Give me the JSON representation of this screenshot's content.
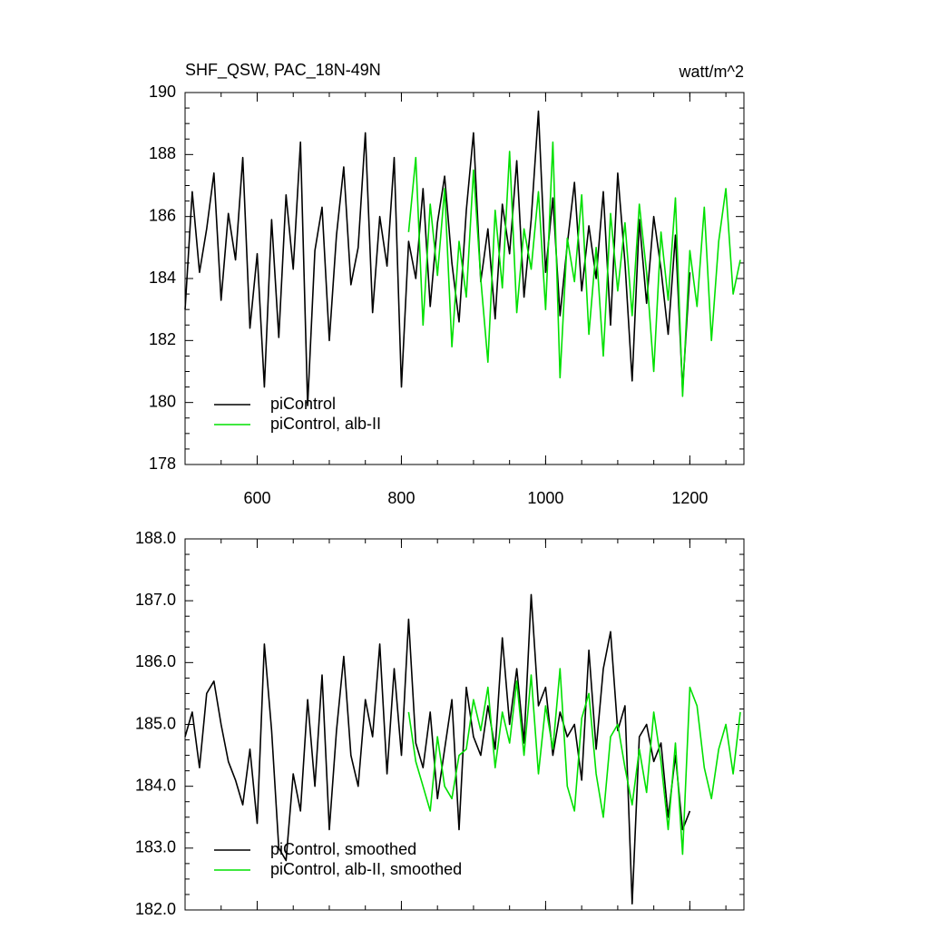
{
  "chart_data": [
    {
      "type": "line",
      "title": "SHF_QSW, PAC_18N-49N",
      "subtitle": "watt/m^2",
      "xlim": [
        500,
        1275
      ],
      "xticks": [
        600,
        800,
        1000,
        1200
      ],
      "ylim": [
        178,
        190
      ],
      "yticks": [
        178,
        180,
        182,
        184,
        186,
        188,
        190
      ],
      "legend": "lower left",
      "series": [
        {
          "name": "piControl",
          "color": "#000000",
          "x": [
            500,
            510,
            520,
            530,
            540,
            550,
            560,
            570,
            580,
            590,
            600,
            610,
            620,
            630,
            640,
            650,
            660,
            670,
            680,
            690,
            700,
            710,
            720,
            730,
            740,
            750,
            760,
            770,
            780,
            790,
            800,
            810,
            820,
            830,
            840,
            850,
            860,
            870,
            880,
            890,
            900,
            910,
            920,
            930,
            940,
            950,
            960,
            970,
            980,
            990,
            1000,
            1010,
            1020,
            1030,
            1040,
            1050,
            1060,
            1070,
            1080,
            1090,
            1100,
            1110,
            1120,
            1130,
            1140,
            1150,
            1160,
            1170,
            1180,
            1190,
            1200
          ],
          "values": [
            183.0,
            186.8,
            184.2,
            185.6,
            187.4,
            183.3,
            186.1,
            184.6,
            187.9,
            182.4,
            184.8,
            180.5,
            185.9,
            182.1,
            186.7,
            184.3,
            188.4,
            179.9,
            184.9,
            186.3,
            182.0,
            185.4,
            187.6,
            183.8,
            185.0,
            188.7,
            182.9,
            186.0,
            184.4,
            187.9,
            180.5,
            185.2,
            184.0,
            186.9,
            183.1,
            185.8,
            187.3,
            184.5,
            182.6,
            186.2,
            188.7,
            183.9,
            185.6,
            182.7,
            186.4,
            184.8,
            187.8,
            183.4,
            185.9,
            189.4,
            184.2,
            186.6,
            182.8,
            185.1,
            187.1,
            183.6,
            185.7,
            184.0,
            186.8,
            182.5,
            187.4,
            184.5,
            180.7,
            185.9,
            183.2,
            186.0,
            184.3,
            182.2,
            185.4,
            180.4,
            184.2
          ]
        },
        {
          "name": "piControl, alb-II",
          "color": "#00e000",
          "x": [
            810,
            820,
            830,
            840,
            850,
            860,
            870,
            880,
            890,
            900,
            910,
            920,
            930,
            940,
            950,
            960,
            970,
            980,
            990,
            1000,
            1010,
            1020,
            1030,
            1040,
            1050,
            1060,
            1070,
            1080,
            1090,
            1100,
            1110,
            1120,
            1130,
            1140,
            1150,
            1160,
            1170,
            1180,
            1190,
            1200,
            1210,
            1220,
            1230,
            1240,
            1250,
            1260,
            1270
          ],
          "values": [
            185.5,
            187.9,
            182.5,
            186.4,
            184.1,
            186.9,
            181.8,
            185.2,
            183.4,
            187.5,
            184.0,
            181.3,
            186.2,
            183.7,
            188.1,
            182.9,
            185.6,
            184.3,
            186.8,
            183.0,
            188.4,
            180.8,
            185.3,
            183.9,
            186.7,
            182.2,
            185.0,
            181.5,
            186.1,
            183.6,
            185.8,
            182.8,
            186.4,
            184.2,
            181.0,
            185.5,
            183.3,
            186.6,
            180.2,
            184.9,
            183.1,
            186.3,
            182.0,
            185.2,
            186.9,
            183.5,
            184.6
          ]
        }
      ]
    },
    {
      "type": "line",
      "xlim": [
        500,
        1275
      ],
      "xticks": [
        600,
        800,
        1000,
        1200
      ],
      "xtick_labels": false,
      "ylim": [
        182,
        188
      ],
      "yticks": [
        {
          "value": 182,
          "label": "182.0"
        },
        {
          "value": 183,
          "label": "183.0"
        },
        {
          "value": 184,
          "label": "184.0"
        },
        {
          "value": 185,
          "label": "185.0"
        },
        {
          "value": 186,
          "label": "186.0"
        },
        {
          "value": 187,
          "label": "187.0"
        },
        {
          "value": 188,
          "label": "188.0"
        }
      ],
      "legend": "lower left",
      "series": [
        {
          "name": "piControl, smoothed",
          "color": "#000000",
          "x": [
            500,
            510,
            520,
            530,
            540,
            550,
            560,
            570,
            580,
            590,
            600,
            610,
            620,
            630,
            640,
            650,
            660,
            670,
            680,
            690,
            700,
            710,
            720,
            730,
            740,
            750,
            760,
            770,
            780,
            790,
            800,
            810,
            820,
            830,
            840,
            850,
            860,
            870,
            880,
            890,
            900,
            910,
            920,
            930,
            940,
            950,
            960,
            970,
            980,
            990,
            1000,
            1010,
            1020,
            1030,
            1040,
            1050,
            1060,
            1070,
            1080,
            1090,
            1100,
            1110,
            1120,
            1130,
            1140,
            1150,
            1160,
            1170,
            1180,
            1190,
            1200
          ],
          "values": [
            184.8,
            185.2,
            184.3,
            185.5,
            185.7,
            185.0,
            184.4,
            184.1,
            183.7,
            184.6,
            183.4,
            186.3,
            184.9,
            183.0,
            182.8,
            184.2,
            183.6,
            185.4,
            184.0,
            185.8,
            183.3,
            184.9,
            186.1,
            184.5,
            184.0,
            185.4,
            184.8,
            186.3,
            184.2,
            185.9,
            184.5,
            186.7,
            184.7,
            184.3,
            185.2,
            183.8,
            184.6,
            185.4,
            183.3,
            185.6,
            184.8,
            184.5,
            185.3,
            184.6,
            186.4,
            185.0,
            185.9,
            184.7,
            187.1,
            185.3,
            185.6,
            184.5,
            185.2,
            184.8,
            185.0,
            184.1,
            186.2,
            184.6,
            185.9,
            186.5,
            184.9,
            185.3,
            182.1,
            184.8,
            185.0,
            184.4,
            184.7,
            183.5,
            184.5,
            183.3,
            183.6
          ]
        },
        {
          "name": "piControl, alb-II, smoothed",
          "color": "#00e000",
          "x": [
            810,
            820,
            830,
            840,
            850,
            860,
            870,
            880,
            890,
            900,
            910,
            920,
            930,
            940,
            950,
            960,
            970,
            980,
            990,
            1000,
            1010,
            1020,
            1030,
            1040,
            1050,
            1060,
            1070,
            1080,
            1090,
            1100,
            1110,
            1120,
            1130,
            1140,
            1150,
            1160,
            1170,
            1180,
            1190,
            1200,
            1210,
            1220,
            1230,
            1240,
            1250,
            1260,
            1270
          ],
          "values": [
            185.2,
            184.4,
            184.0,
            183.6,
            184.8,
            184.0,
            183.8,
            184.5,
            184.6,
            185.4,
            184.9,
            185.6,
            184.3,
            185.2,
            184.7,
            185.7,
            184.5,
            185.8,
            184.2,
            185.3,
            184.6,
            185.9,
            184.0,
            183.6,
            185.1,
            185.5,
            184.2,
            183.5,
            184.8,
            185.0,
            184.3,
            183.7,
            184.6,
            183.9,
            185.2,
            184.4,
            183.3,
            184.7,
            182.9,
            185.6,
            185.3,
            184.3,
            183.8,
            184.6,
            185.0,
            184.2,
            185.2
          ]
        }
      ]
    }
  ]
}
